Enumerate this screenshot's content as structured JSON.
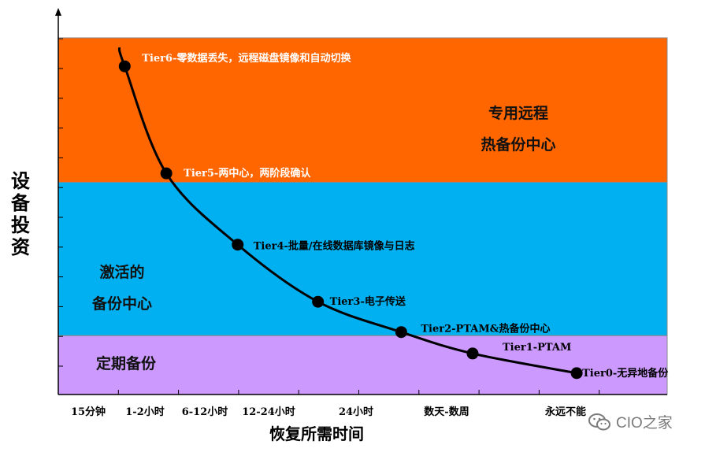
{
  "chart_data": {
    "type": "line",
    "xlabel": "恢复所需时间",
    "ylabel": "设备投资",
    "categories": [
      "15分钟",
      "1-2小时",
      "6-12小时",
      "12-24小时",
      "24小时",
      "数天-数周",
      "永远不能"
    ],
    "bands": [
      {
        "label_lines": [
          "专用远程",
          "热备份中心"
        ],
        "color": "#FF6600",
        "y_range": [
          0.595,
          1.0
        ]
      },
      {
        "label_lines": [
          "激活的",
          "备份中心"
        ],
        "color": "#00B0F0",
        "y_range": [
          0.165,
          0.595
        ]
      },
      {
        "label_lines": [
          "定期备份"
        ],
        "color": "#CC99FF",
        "y_range": [
          0.0,
          0.165
        ]
      }
    ],
    "series": [
      {
        "points": [
          {
            "x": 0.6,
            "y": 0.92,
            "label": "Tier6-零数据丢失，远程磁盘镜像和自动切换",
            "label_color": "#ffffff"
          },
          {
            "x": 1.3,
            "y": 0.62,
            "label": "Tier5-两中心，两阶段确认",
            "label_color": "#ffffff"
          },
          {
            "x": 2.5,
            "y": 0.42,
            "label": "Tier4-批量/在线数据库镜像与日志",
            "label_color": "#000000"
          },
          {
            "x": 3.85,
            "y": 0.26,
            "label": "Tier3-电子传送",
            "label_color": "#000000"
          },
          {
            "x": 5.25,
            "y": 0.175,
            "label": "Tier2-PTAM&热备份中心",
            "label_color": "#000000"
          },
          {
            "x": 6.45,
            "y": 0.115,
            "label": "Tier1-PTAM",
            "label_color": "#000000"
          },
          {
            "x": 8.2,
            "y": 0.06,
            "label": "Tier0-无异地备份",
            "label_color": "#000000"
          }
        ]
      }
    ],
    "grid": false,
    "line_color": "#000000"
  },
  "watermark": {
    "text": "CIO之家",
    "icon": "wechat-icon"
  }
}
